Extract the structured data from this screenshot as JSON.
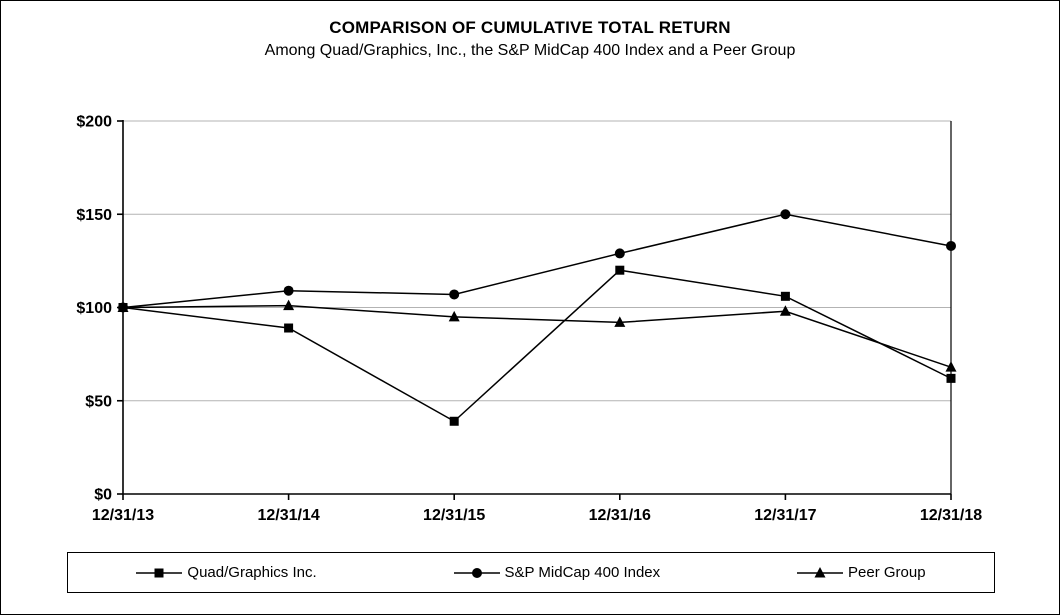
{
  "title": "COMPARISON OF CUMULATIVE TOTAL RETURN",
  "subtitle": "Among Quad/Graphics, Inc., the S&P MidCap 400 Index and a Peer Group",
  "chart_data": {
    "type": "line",
    "categories": [
      "12/31/13",
      "12/31/14",
      "12/31/15",
      "12/31/16",
      "12/31/17",
      "12/31/18"
    ],
    "series": [
      {
        "name": "Quad/Graphics Inc.",
        "marker": "square",
        "values": [
          100,
          89,
          39,
          120,
          106,
          62
        ]
      },
      {
        "name": "S&P MidCap 400 Index",
        "marker": "circle",
        "values": [
          100,
          109,
          107,
          129,
          150,
          133
        ]
      },
      {
        "name": "Peer Group",
        "marker": "triangle",
        "values": [
          100,
          101,
          95,
          92,
          98,
          68
        ]
      }
    ],
    "xlabel": "",
    "ylabel": "",
    "ylim": [
      0,
      200
    ],
    "ytick_step": 50,
    "ytick_labels": [
      "$0",
      "$50",
      "$100",
      "$150",
      "$200"
    ],
    "grid": true,
    "legend_position": "bottom",
    "line_color": "#000000",
    "grid_color": "#b3b3b3"
  }
}
